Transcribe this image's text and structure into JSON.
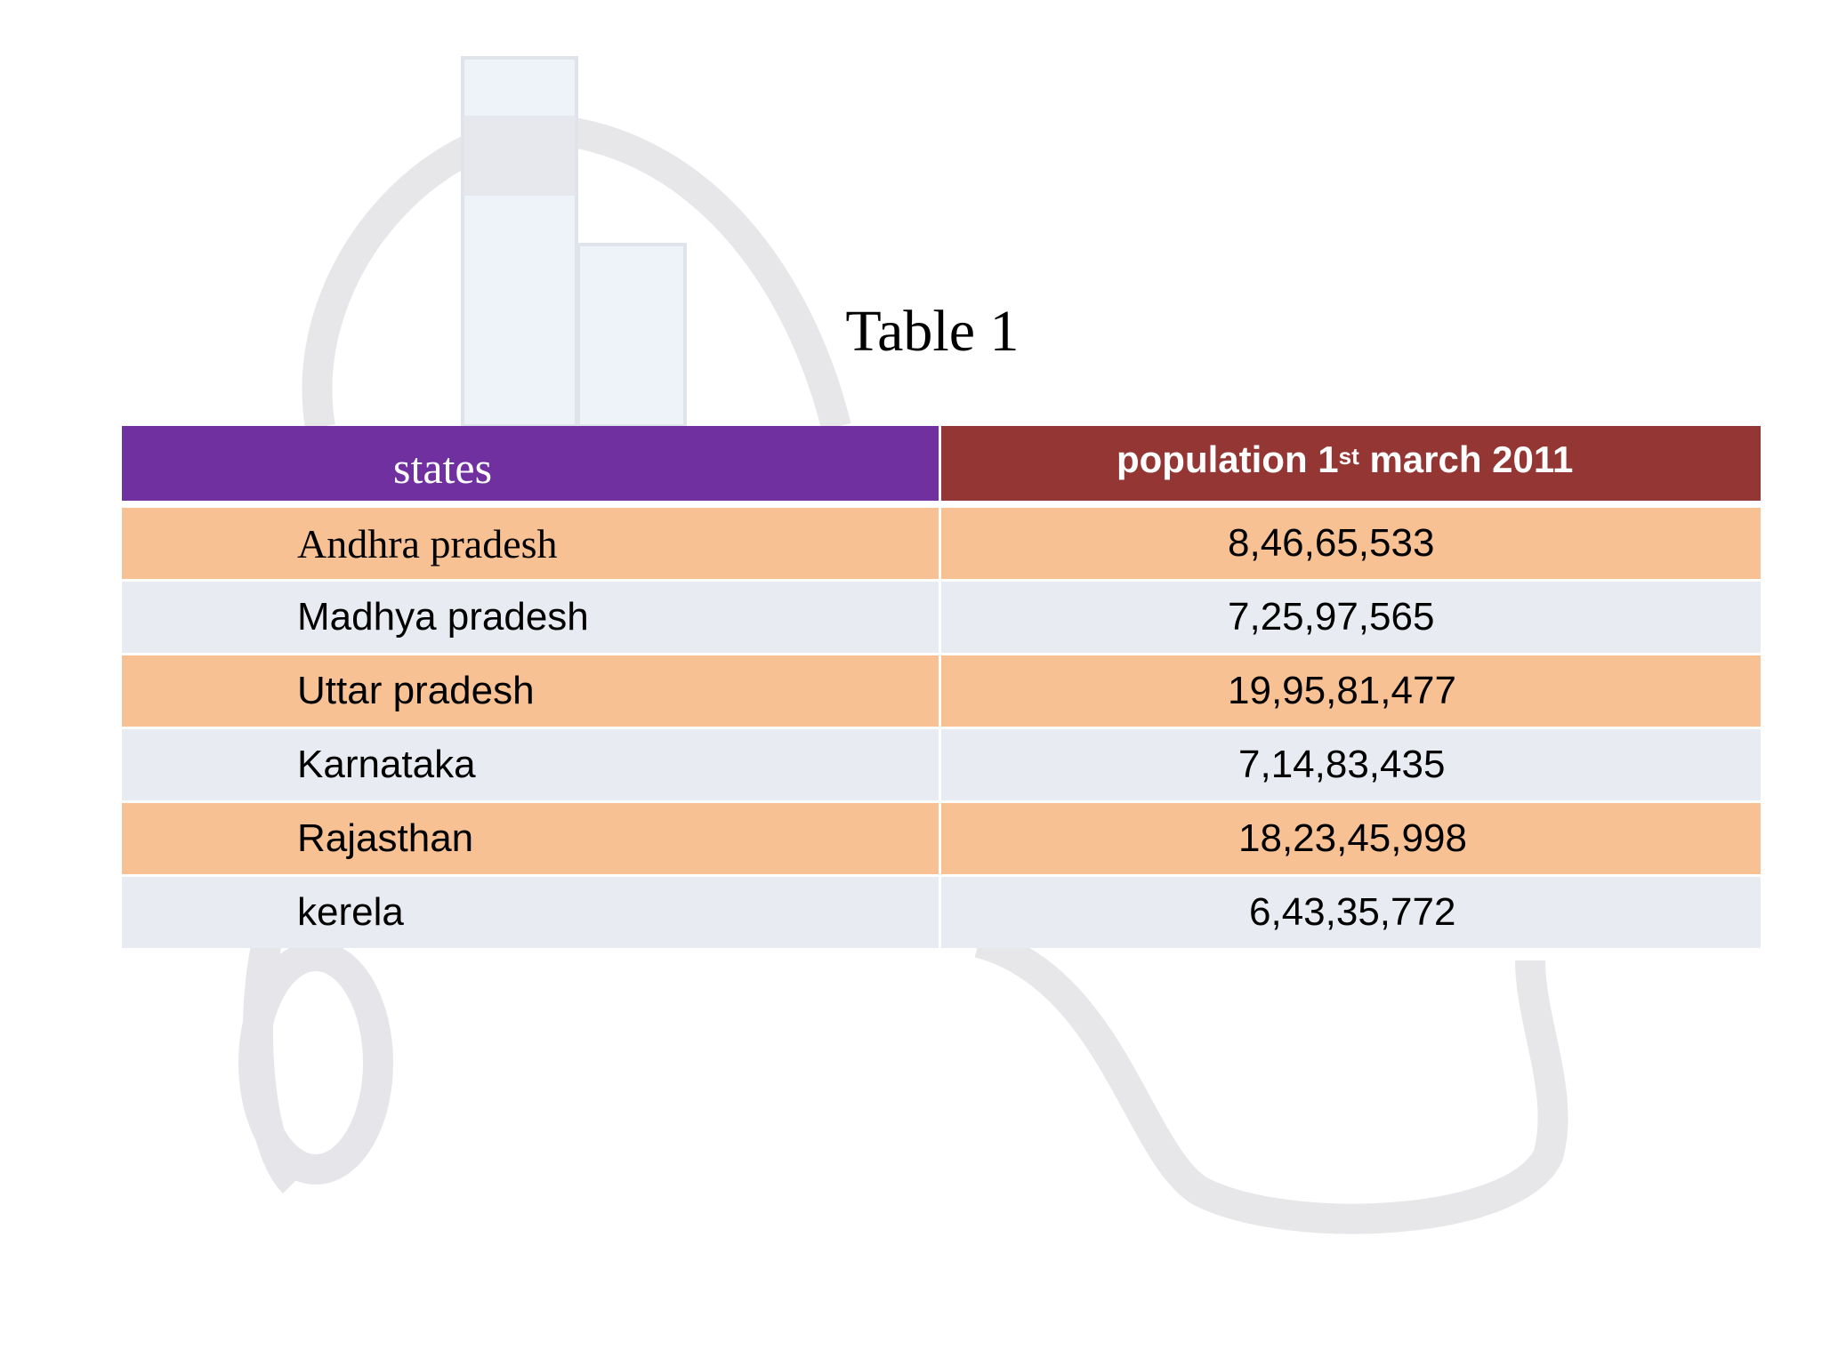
{
  "title": "Table 1",
  "table": {
    "header": [
      "states",
      [
        "population 1",
        "st",
        " march 2011"
      ]
    ],
    "rows": [
      [
        "Andhra pradesh",
        "8,46,65,533"
      ],
      [
        "Madhya pradesh",
        "7,25,97,565"
      ],
      [
        "Uttar pradesh",
        "19,95,81,477"
      ],
      [
        "Karnataka",
        "7,14,83,435"
      ],
      [
        "Rajasthan",
        "18,23,45,998"
      ],
      [
        "kerela",
        "6,43,35,772"
      ]
    ]
  }
}
